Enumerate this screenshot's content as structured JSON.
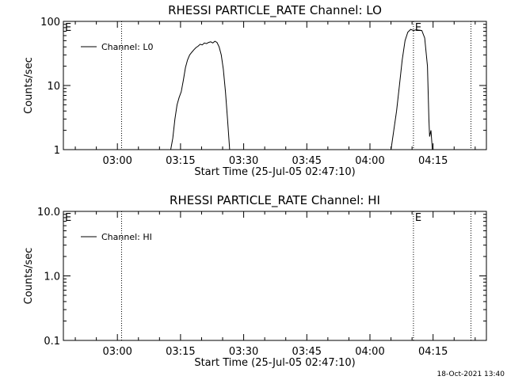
{
  "figure": {
    "timestamp": "18-Oct-2021 13:40"
  },
  "chart_data": [
    {
      "type": "line",
      "title": "RHESSI PARTICLE_RATE Channel: LO",
      "xlabel": "Start Time (25-Jul-05 02:47:10)",
      "ylabel": "Counts/sec",
      "yscale": "log",
      "xlim": [
        "02:47:10",
        "04:27:40"
      ],
      "ylim": [
        1,
        100
      ],
      "x_ticks": [
        "03:00",
        "03:15",
        "03:30",
        "03:45",
        "04:00",
        "04:15"
      ],
      "y_ticks": [
        "1",
        "10",
        "100"
      ],
      "legend_position": "top-left",
      "series": [
        {
          "name": "Channel: L0",
          "color": "#000000",
          "points": [
            [
              "03:12:40",
              1
            ],
            [
              "03:13:10",
              1.5
            ],
            [
              "03:13:40",
              3
            ],
            [
              "03:14:10",
              5
            ],
            [
              "03:14:40",
              6.5
            ],
            [
              "03:15:10",
              8
            ],
            [
              "03:15:40",
              12
            ],
            [
              "03:16:10",
              19
            ],
            [
              "03:16:40",
              25
            ],
            [
              "03:17:10",
              30
            ],
            [
              "03:17:40",
              33
            ],
            [
              "03:18:10",
              36
            ],
            [
              "03:18:40",
              39
            ],
            [
              "03:19:10",
              41
            ],
            [
              "03:19:40",
              44
            ],
            [
              "03:20:10",
              43
            ],
            [
              "03:20:40",
              46
            ],
            [
              "03:21:10",
              45
            ],
            [
              "03:21:40",
              47
            ],
            [
              "03:22:10",
              48
            ],
            [
              "03:22:40",
              46
            ],
            [
              "03:23:10",
              49
            ],
            [
              "03:23:40",
              47
            ],
            [
              "03:24:10",
              40
            ],
            [
              "03:24:40",
              30
            ],
            [
              "03:25:10",
              18
            ],
            [
              "03:25:40",
              8
            ],
            [
              "03:26:10",
              3
            ],
            [
              "03:26:40",
              1
            ],
            null,
            [
              "04:05:00",
              1
            ],
            [
              "04:05:40",
              2
            ],
            [
              "04:06:20",
              4
            ],
            [
              "04:07:00",
              10
            ],
            [
              "04:07:40",
              25
            ],
            [
              "04:08:20",
              50
            ],
            [
              "04:09:00",
              68
            ],
            [
              "04:09:40",
              75
            ],
            [
              "04:10:20",
              72
            ],
            [
              "04:11:00",
              74
            ],
            [
              "04:11:40",
              73
            ],
            [
              "04:12:20",
              72
            ],
            [
              "04:13:00",
              55
            ],
            [
              "04:13:40",
              20
            ],
            [
              "04:14:00",
              3
            ],
            [
              "04:14:10",
              1.6
            ],
            [
              "04:14:30",
              2
            ],
            [
              "04:14:50",
              1
            ]
          ]
        }
      ],
      "event_lines": [
        "03:01:00",
        "04:10:20",
        "04:24:00"
      ],
      "event_markers": [
        {
          "x": "02:47:10",
          "label": "E"
        },
        {
          "x": "04:10:20",
          "label": "E"
        }
      ]
    },
    {
      "type": "line",
      "title": "RHESSI PARTICLE_RATE Channel: HI",
      "xlabel": "Start Time (25-Jul-05 02:47:10)",
      "ylabel": "Counts/sec",
      "yscale": "log",
      "xlim": [
        "02:47:10",
        "04:27:40"
      ],
      "ylim": [
        0.1,
        10.0
      ],
      "x_ticks": [
        "03:00",
        "03:15",
        "03:30",
        "03:45",
        "04:00",
        "04:15"
      ],
      "y_ticks": [
        "0.1",
        "1.0",
        "10.0"
      ],
      "legend_position": "top-left",
      "series": [
        {
          "name": "Channel: HI",
          "color": "#000000",
          "points": []
        }
      ],
      "event_lines": [
        "03:01:00",
        "04:10:20",
        "04:24:00"
      ],
      "event_markers": [
        {
          "x": "02:47:10",
          "label": "E"
        },
        {
          "x": "04:10:20",
          "label": "E"
        }
      ]
    }
  ]
}
